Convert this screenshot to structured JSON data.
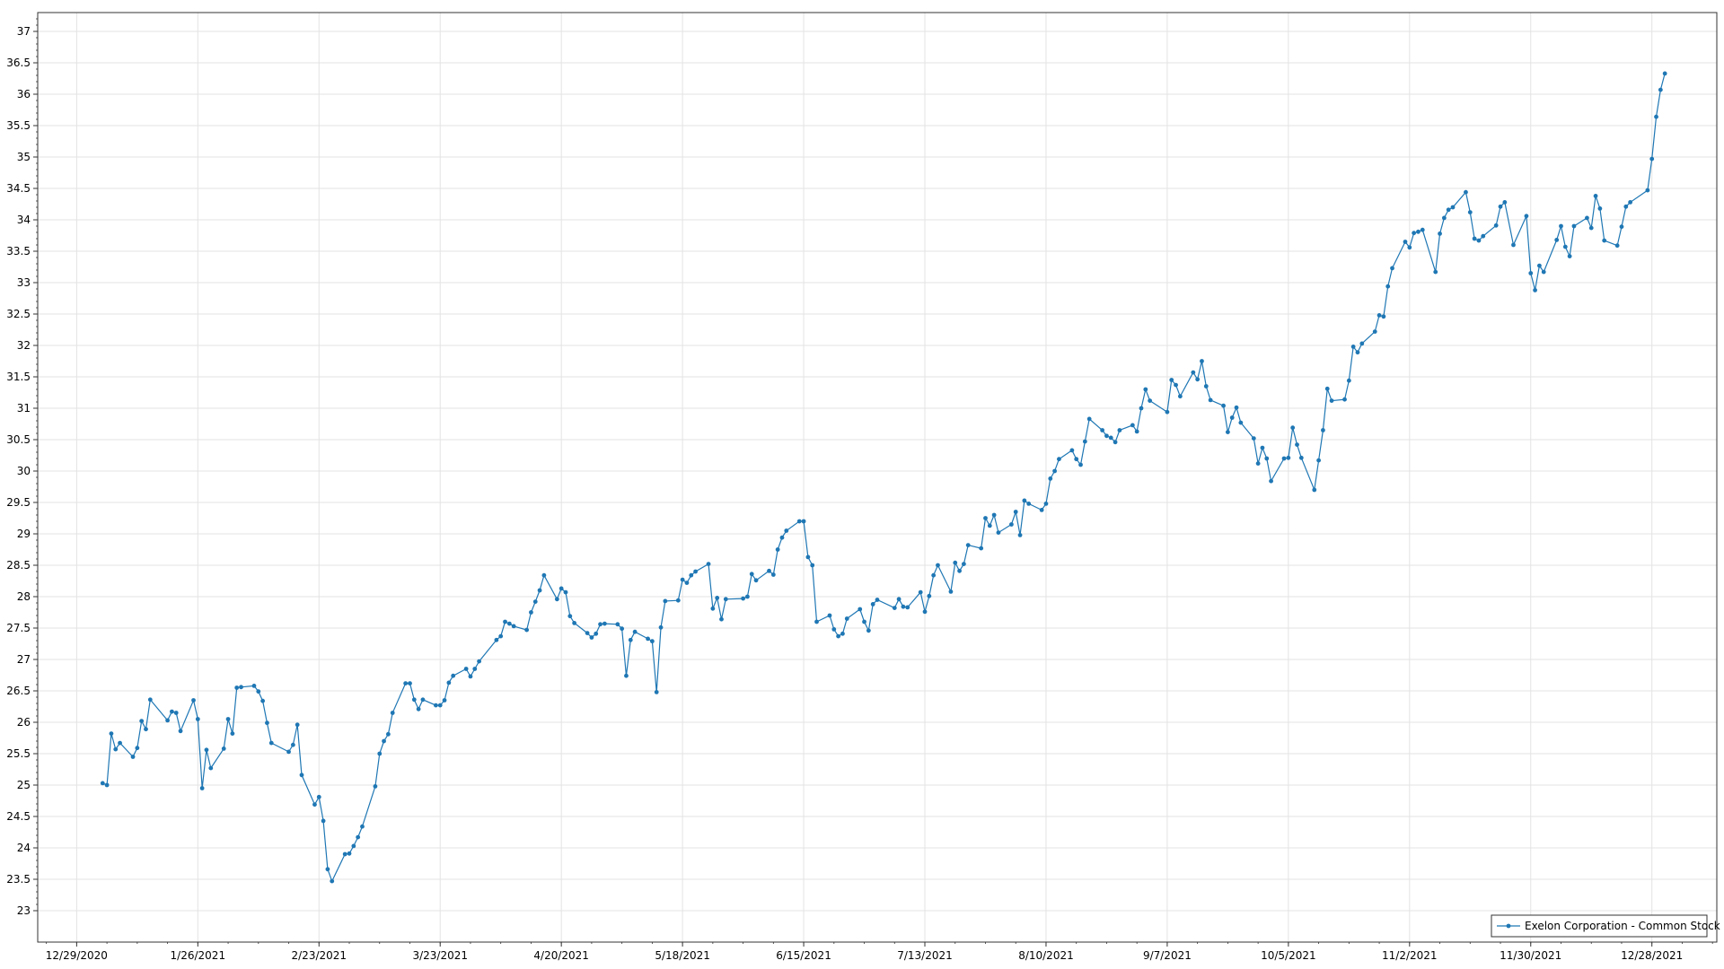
{
  "chart_data": {
    "type": "line",
    "title": "",
    "xlabel": "",
    "ylabel": "",
    "grid": true,
    "legend_placement": "bottom-right",
    "colors": {
      "series": "#1f77b4",
      "grid": "#e3e3e3",
      "axis": "#333333"
    },
    "x_axis": {
      "range": [
        "2020-12-20",
        "2022-01-12"
      ],
      "tick_dates": [
        "2020-12-29",
        "2021-01-26",
        "2021-02-23",
        "2021-03-23",
        "2021-04-20",
        "2021-05-18",
        "2021-06-15",
        "2021-07-13",
        "2021-08-10",
        "2021-09-07",
        "2021-10-05",
        "2021-11-02",
        "2021-11-30",
        "2021-12-28"
      ],
      "tick_labels": [
        "12/29/2020",
        "1/26/2021",
        "2/23/2021",
        "3/23/2021",
        "4/20/2021",
        "5/18/2021",
        "6/15/2021",
        "7/13/2021",
        "8/10/2021",
        "9/7/2021",
        "10/5/2021",
        "11/2/2021",
        "11/30/2021",
        "12/28/2021"
      ]
    },
    "y_axis": {
      "ylim": [
        22.5,
        37.3
      ],
      "ticks": [
        23,
        23.5,
        24,
        24.5,
        25,
        25.5,
        26,
        26.5,
        27,
        27.5,
        28,
        28.5,
        29,
        29.5,
        30,
        30.5,
        31,
        31.5,
        32,
        32.5,
        33,
        33.5,
        34,
        34.5,
        35,
        35.5,
        36,
        36.5,
        37
      ]
    },
    "series": [
      {
        "name": "Exelon Corporation - Common Stock",
        "x": [
          "2021-01-04",
          "2021-01-05",
          "2021-01-06",
          "2021-01-07",
          "2021-01-08",
          "2021-01-11",
          "2021-01-12",
          "2021-01-13",
          "2021-01-14",
          "2021-01-15",
          "2021-01-19",
          "2021-01-20",
          "2021-01-21",
          "2021-01-22",
          "2021-01-25",
          "2021-01-26",
          "2021-01-27",
          "2021-01-28",
          "2021-01-29",
          "2021-02-01",
          "2021-02-02",
          "2021-02-03",
          "2021-02-04",
          "2021-02-05",
          "2021-02-08",
          "2021-02-09",
          "2021-02-10",
          "2021-02-11",
          "2021-02-12",
          "2021-02-16",
          "2021-02-17",
          "2021-02-18",
          "2021-02-19",
          "2021-02-22",
          "2021-02-23",
          "2021-02-24",
          "2021-02-25",
          "2021-02-26",
          "2021-03-01",
          "2021-03-02",
          "2021-03-03",
          "2021-03-04",
          "2021-03-05",
          "2021-03-08",
          "2021-03-09",
          "2021-03-10",
          "2021-03-11",
          "2021-03-12",
          "2021-03-15",
          "2021-03-16",
          "2021-03-17",
          "2021-03-18",
          "2021-03-19",
          "2021-03-22",
          "2021-03-23",
          "2021-03-24",
          "2021-03-25",
          "2021-03-26",
          "2021-03-29",
          "2021-03-30",
          "2021-03-31",
          "2021-04-01",
          "2021-04-05",
          "2021-04-06",
          "2021-04-07",
          "2021-04-08",
          "2021-04-09",
          "2021-04-12",
          "2021-04-13",
          "2021-04-14",
          "2021-04-15",
          "2021-04-16",
          "2021-04-19",
          "2021-04-20",
          "2021-04-21",
          "2021-04-22",
          "2021-04-23",
          "2021-04-26",
          "2021-04-27",
          "2021-04-28",
          "2021-04-29",
          "2021-04-30",
          "2021-05-03",
          "2021-05-04",
          "2021-05-05",
          "2021-05-06",
          "2021-05-07",
          "2021-05-10",
          "2021-05-11",
          "2021-05-12",
          "2021-05-13",
          "2021-05-14",
          "2021-05-17",
          "2021-05-18",
          "2021-05-19",
          "2021-05-20",
          "2021-05-21",
          "2021-05-24",
          "2021-05-25",
          "2021-05-26",
          "2021-05-27",
          "2021-05-28",
          "2021-06-01",
          "2021-06-02",
          "2021-06-03",
          "2021-06-04",
          "2021-06-07",
          "2021-06-08",
          "2021-06-09",
          "2021-06-10",
          "2021-06-11",
          "2021-06-14",
          "2021-06-15",
          "2021-06-16",
          "2021-06-17",
          "2021-06-18",
          "2021-06-21",
          "2021-06-22",
          "2021-06-23",
          "2021-06-24",
          "2021-06-25",
          "2021-06-28",
          "2021-06-29",
          "2021-06-30",
          "2021-07-01",
          "2021-07-02",
          "2021-07-06",
          "2021-07-07",
          "2021-07-08",
          "2021-07-09",
          "2021-07-12",
          "2021-07-13",
          "2021-07-14",
          "2021-07-15",
          "2021-07-16",
          "2021-07-19",
          "2021-07-20",
          "2021-07-21",
          "2021-07-22",
          "2021-07-23",
          "2021-07-26",
          "2021-07-27",
          "2021-07-28",
          "2021-07-29",
          "2021-07-30",
          "2021-08-02",
          "2021-08-03",
          "2021-08-04",
          "2021-08-05",
          "2021-08-06",
          "2021-08-09",
          "2021-08-10",
          "2021-08-11",
          "2021-08-12",
          "2021-08-13",
          "2021-08-16",
          "2021-08-17",
          "2021-08-18",
          "2021-08-19",
          "2021-08-20",
          "2021-08-23",
          "2021-08-24",
          "2021-08-25",
          "2021-08-26",
          "2021-08-27",
          "2021-08-30",
          "2021-08-31",
          "2021-09-01",
          "2021-09-02",
          "2021-09-03",
          "2021-09-07",
          "2021-09-08",
          "2021-09-09",
          "2021-09-10",
          "2021-09-13",
          "2021-09-14",
          "2021-09-15",
          "2021-09-16",
          "2021-09-17",
          "2021-09-20",
          "2021-09-21",
          "2021-09-22",
          "2021-09-23",
          "2021-09-24",
          "2021-09-27",
          "2021-09-28",
          "2021-09-29",
          "2021-09-30",
          "2021-10-01",
          "2021-10-04",
          "2021-10-05",
          "2021-10-06",
          "2021-10-07",
          "2021-10-08",
          "2021-10-11",
          "2021-10-12",
          "2021-10-13",
          "2021-10-14",
          "2021-10-15",
          "2021-10-18",
          "2021-10-19",
          "2021-10-20",
          "2021-10-21",
          "2021-10-22",
          "2021-10-25",
          "2021-10-26",
          "2021-10-27",
          "2021-10-28",
          "2021-10-29",
          "2021-11-01",
          "2021-11-02",
          "2021-11-03",
          "2021-11-04",
          "2021-11-05",
          "2021-11-08",
          "2021-11-09",
          "2021-11-10",
          "2021-11-11",
          "2021-11-12",
          "2021-11-15",
          "2021-11-16",
          "2021-11-17",
          "2021-11-18",
          "2021-11-19",
          "2021-11-22",
          "2021-11-23",
          "2021-11-24",
          "2021-11-26",
          "2021-11-29",
          "2021-11-30",
          "2021-12-01",
          "2021-12-02",
          "2021-12-03",
          "2021-12-06",
          "2021-12-07",
          "2021-12-08",
          "2021-12-09",
          "2021-12-10",
          "2021-12-13",
          "2021-12-14",
          "2021-12-15",
          "2021-12-16",
          "2021-12-17",
          "2021-12-20",
          "2021-12-21",
          "2021-12-22",
          "2021-12-23",
          "2021-12-27",
          "2021-12-28",
          "2021-12-29",
          "2021-12-30",
          "2021-12-31"
        ],
        "y": [
          25.03,
          25.0,
          25.82,
          25.57,
          25.67,
          25.45,
          25.59,
          26.02,
          25.89,
          26.36,
          26.03,
          26.17,
          26.15,
          25.86,
          26.35,
          26.05,
          24.95,
          25.56,
          25.27,
          25.58,
          26.05,
          25.82,
          26.55,
          26.56,
          26.58,
          26.49,
          26.34,
          25.99,
          25.67,
          25.53,
          25.64,
          25.96,
          25.16,
          24.69,
          24.81,
          24.43,
          23.66,
          23.47,
          23.9,
          23.91,
          24.03,
          24.17,
          24.34,
          24.98,
          25.5,
          25.7,
          25.81,
          26.15,
          26.62,
          26.62,
          26.36,
          26.21,
          26.36,
          26.27,
          26.27,
          26.35,
          26.63,
          26.74,
          26.85,
          26.73,
          26.85,
          26.97,
          27.31,
          27.37,
          27.6,
          27.57,
          27.53,
          27.47,
          27.75,
          27.92,
          28.1,
          28.34,
          27.96,
          28.13,
          28.07,
          27.69,
          27.58,
          27.42,
          27.35,
          27.41,
          27.56,
          27.57,
          27.56,
          27.49,
          26.74,
          27.31,
          27.44,
          27.33,
          27.29,
          26.48,
          27.51,
          27.93,
          27.94,
          28.27,
          28.22,
          28.34,
          28.4,
          28.52,
          27.81,
          27.98,
          27.64,
          27.96,
          27.97,
          28.0,
          28.36,
          28.26,
          28.41,
          28.35,
          28.75,
          28.94,
          29.05,
          29.2,
          29.2,
          28.63,
          28.5,
          27.6,
          27.7,
          27.48,
          27.37,
          27.41,
          27.65,
          27.8,
          27.6,
          27.46,
          27.88,
          27.95,
          27.82,
          27.96,
          27.84,
          27.83,
          28.07,
          27.76,
          28.01,
          28.34,
          28.5,
          28.08,
          28.54,
          28.41,
          28.52,
          28.82,
          28.77,
          29.25,
          29.13,
          29.3,
          29.02,
          29.15,
          29.35,
          28.98,
          29.53,
          29.48,
          29.38,
          29.48,
          29.88,
          30.0,
          30.19,
          30.33,
          30.19,
          30.1,
          30.47,
          30.83,
          30.65,
          30.56,
          30.53,
          30.46,
          30.65,
          30.73,
          30.63,
          31.0,
          31.3,
          31.12,
          30.94,
          31.45,
          31.37,
          31.19,
          31.57,
          31.46,
          31.75,
          31.35,
          31.13,
          31.04,
          30.62,
          30.85,
          31.01,
          30.77,
          30.52,
          30.12,
          30.37,
          30.2,
          29.84,
          30.2,
          30.21,
          30.69,
          30.42,
          30.21,
          29.7,
          30.17,
          30.65,
          31.31,
          31.12,
          31.14,
          31.44,
          31.98,
          31.89,
          32.03,
          32.22,
          32.48,
          32.46,
          32.94,
          33.23,
          33.65,
          33.56,
          33.79,
          33.81,
          33.84,
          33.17,
          33.78,
          34.03,
          34.16,
          34.2,
          34.44,
          34.12,
          33.7,
          33.67,
          33.74,
          33.91,
          34.21,
          34.28,
          33.6,
          34.06,
          33.15,
          32.88,
          33.27,
          33.17,
          33.68,
          33.9,
          33.57,
          33.42,
          33.9,
          34.03,
          33.87,
          34.38,
          34.18,
          33.67,
          33.59,
          33.89,
          34.21,
          34.28,
          34.47,
          34.97,
          35.64,
          36.07,
          36.33
        ]
      }
    ]
  }
}
